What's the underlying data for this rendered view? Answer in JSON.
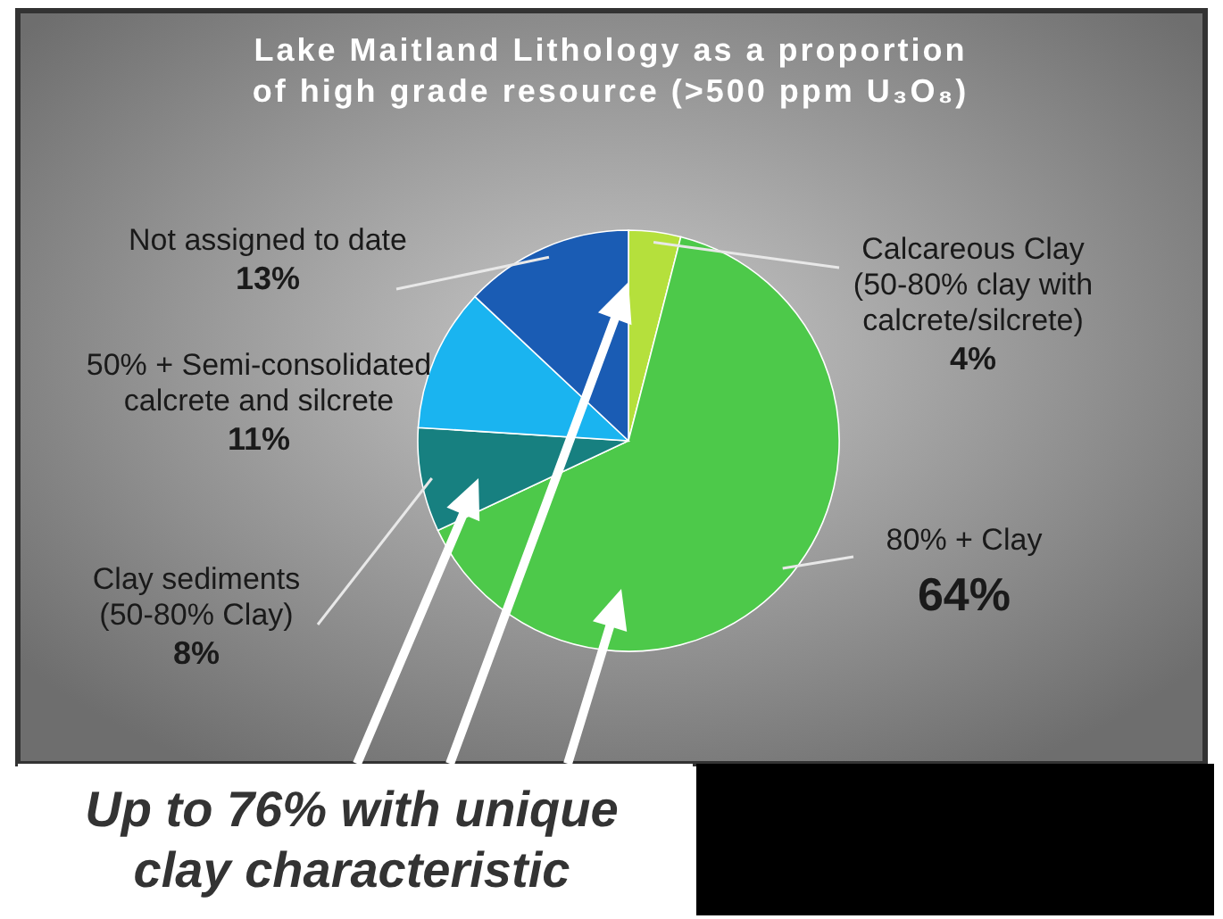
{
  "chart_data": {
    "type": "pie",
    "title": "Lake Maitland Lithology as a proportion\nof high grade resource (>500 ppm U₃O₈)",
    "categories": [
      "Calcareous Clay\n(50-80% clay with\ncalcrete/silcrete)",
      "80% + Clay",
      "Clay sediments\n(50-80% Clay)",
      "50% + Semi-consolidated\ncalcrete and silcrete",
      "Not assigned to date"
    ],
    "values": [
      4,
      64,
      8,
      11,
      13
    ],
    "value_labels": [
      "4%",
      "64%",
      "8%",
      "11%",
      "13%"
    ],
    "colors": [
      "#b5e03c",
      "#4dc94a",
      "#178080",
      "#1ab4f0",
      "#1a5cb4"
    ],
    "annotations": [
      "Up to 76% with unique\nclay characteristic"
    ]
  }
}
